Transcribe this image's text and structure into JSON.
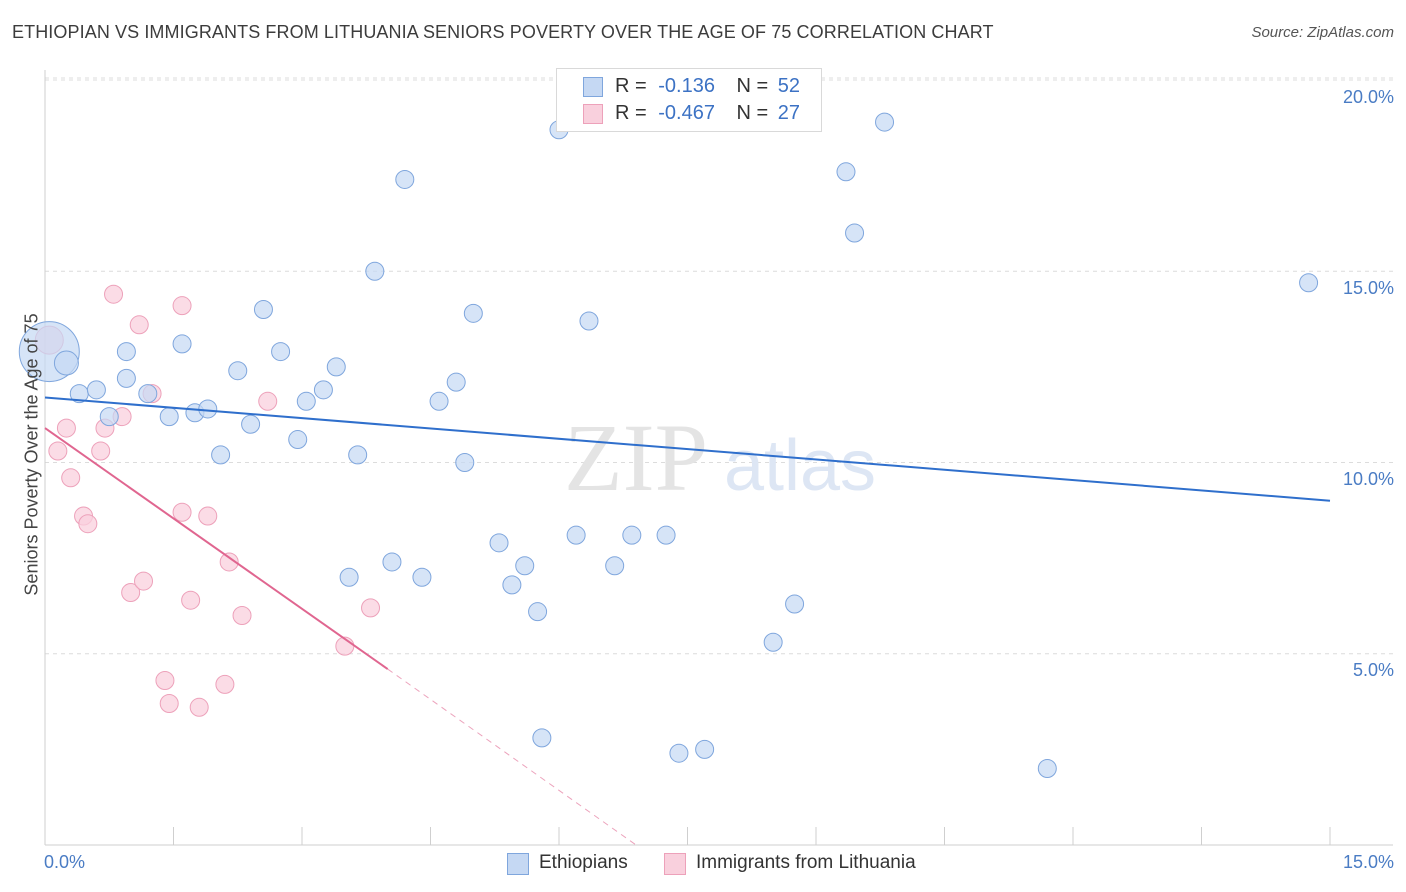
{
  "header": {
    "title": "ETHIOPIAN VS IMMIGRANTS FROM LITHUANIA SENIORS POVERTY OVER THE AGE OF 75 CORRELATION CHART",
    "source": "Source: ZipAtlas.com"
  },
  "watermark": {
    "zip": "ZIP",
    "atlas": "atlas"
  },
  "legend_top": {
    "rows": [
      {
        "r_label": "R =",
        "r_value": "-0.136",
        "n_label": "N =",
        "n_value": "52"
      },
      {
        "r_label": "R =",
        "r_value": "-0.467",
        "n_label": "N =",
        "n_value": "27"
      }
    ]
  },
  "legend_bottom": {
    "items": [
      "Ethiopians",
      "Immigrants from Lithuania"
    ]
  },
  "colors": {
    "ethiopians_fill": "#c5d8f3",
    "ethiopians_stroke": "#7fa6dd",
    "ethiopians_line": "#2f6fcc",
    "lithuania_fill": "#f9d0dd",
    "lithuania_stroke": "#eda1ba",
    "lithuania_line": "#e06690",
    "tick_text": "#4a7cc4"
  },
  "chart_data": {
    "type": "scatter",
    "title": "ETHIOPIAN VS IMMIGRANTS FROM LITHUANIA SENIORS POVERTY OVER THE AGE OF 75 CORRELATION CHART",
    "xlabel": "",
    "ylabel": "Seniors Poverty Over the Age of 75",
    "xlim": [
      0,
      15
    ],
    "ylim": [
      0,
      20.5
    ],
    "x_ticks": [
      0,
      1.5,
      3,
      4.5,
      6,
      7.5,
      9,
      10.5,
      12,
      13.5,
      15
    ],
    "x_tick_labels": [
      "0.0%",
      "15.0%"
    ],
    "y_ticks": [
      5,
      10,
      15,
      20
    ],
    "y_tick_labels": [
      "5.0%",
      "10.0%",
      "15.0%",
      "20.0%"
    ],
    "grid": "horizontal dashed",
    "legend": "top-center",
    "series": [
      {
        "name": "Ethiopians",
        "r": -0.136,
        "n": 52,
        "trend": {
          "x": [
            0,
            15
          ],
          "y": [
            11.7,
            9.0
          ],
          "dashed_extension": false
        },
        "points": [
          [
            0.05,
            12.9
          ],
          [
            0.25,
            12.6
          ],
          [
            0.4,
            11.8
          ],
          [
            0.6,
            11.9
          ],
          [
            0.75,
            11.2
          ],
          [
            0.95,
            12.9
          ],
          [
            0.95,
            12.2
          ],
          [
            1.2,
            11.8
          ],
          [
            1.45,
            11.2
          ],
          [
            1.6,
            13.1
          ],
          [
            1.75,
            11.3
          ],
          [
            1.9,
            11.4
          ],
          [
            2.05,
            10.2
          ],
          [
            2.25,
            12.4
          ],
          [
            2.4,
            11.0
          ],
          [
            2.55,
            14.0
          ],
          [
            2.75,
            12.9
          ],
          [
            2.95,
            10.6
          ],
          [
            3.05,
            11.6
          ],
          [
            3.25,
            11.9
          ],
          [
            3.4,
            12.5
          ],
          [
            3.55,
            7.0
          ],
          [
            3.65,
            10.2
          ],
          [
            3.85,
            15.0
          ],
          [
            4.05,
            7.4
          ],
          [
            4.2,
            17.4
          ],
          [
            4.4,
            7.0
          ],
          [
            4.6,
            11.6
          ],
          [
            4.8,
            12.1
          ],
          [
            4.9,
            10.0
          ],
          [
            5.0,
            13.9
          ],
          [
            5.3,
            7.9
          ],
          [
            5.45,
            6.8
          ],
          [
            5.6,
            7.3
          ],
          [
            5.75,
            6.1
          ],
          [
            5.8,
            2.8
          ],
          [
            6.0,
            18.7
          ],
          [
            6.2,
            8.1
          ],
          [
            6.35,
            13.7
          ],
          [
            6.65,
            7.3
          ],
          [
            6.85,
            8.1
          ],
          [
            7.05,
            19.4
          ],
          [
            7.25,
            8.1
          ],
          [
            7.4,
            2.4
          ],
          [
            7.7,
            2.5
          ],
          [
            8.5,
            5.3
          ],
          [
            8.75,
            6.3
          ],
          [
            9.35,
            17.6
          ],
          [
            9.45,
            16.0
          ],
          [
            9.8,
            18.9
          ],
          [
            11.7,
            2.0
          ],
          [
            14.75,
            14.7
          ]
        ],
        "sizes": [
          30,
          12,
          9,
          9,
          9,
          9,
          9,
          9,
          9,
          9,
          9,
          9,
          9,
          9,
          9,
          9,
          9,
          9,
          9,
          9,
          9,
          9,
          9,
          9,
          9,
          9,
          9,
          9,
          9,
          9,
          9,
          9,
          9,
          9,
          9,
          9,
          9,
          9,
          9,
          9,
          9,
          9,
          9,
          9,
          9,
          9,
          9,
          9,
          9,
          9,
          9,
          9
        ]
      },
      {
        "name": "Immigrants from Lithuania",
        "r": -0.467,
        "n": 27,
        "trend": {
          "x": [
            0,
            4.0
          ],
          "y": [
            10.9,
            4.6
          ],
          "dashed_to": [
            6.9,
            0
          ]
        },
        "points": [
          [
            0.05,
            13.2
          ],
          [
            0.15,
            10.3
          ],
          [
            0.25,
            10.9
          ],
          [
            0.3,
            9.6
          ],
          [
            0.45,
            8.6
          ],
          [
            0.5,
            8.4
          ],
          [
            0.65,
            10.3
          ],
          [
            0.7,
            10.9
          ],
          [
            0.8,
            14.4
          ],
          [
            0.9,
            11.2
          ],
          [
            1.0,
            6.6
          ],
          [
            1.1,
            13.6
          ],
          [
            1.15,
            6.9
          ],
          [
            1.25,
            11.8
          ],
          [
            1.4,
            4.3
          ],
          [
            1.45,
            3.7
          ],
          [
            1.6,
            14.1
          ],
          [
            1.6,
            8.7
          ],
          [
            1.7,
            6.4
          ],
          [
            1.8,
            3.6
          ],
          [
            1.9,
            8.6
          ],
          [
            2.1,
            4.2
          ],
          [
            2.15,
            7.4
          ],
          [
            2.3,
            6.0
          ],
          [
            2.6,
            11.6
          ],
          [
            3.5,
            5.2
          ],
          [
            3.8,
            6.2
          ]
        ],
        "sizes": [
          14,
          9,
          9,
          9,
          9,
          9,
          9,
          9,
          9,
          9,
          9,
          9,
          9,
          9,
          9,
          9,
          9,
          9,
          9,
          9,
          9,
          9,
          9,
          9,
          9,
          9,
          9
        ]
      }
    ]
  }
}
